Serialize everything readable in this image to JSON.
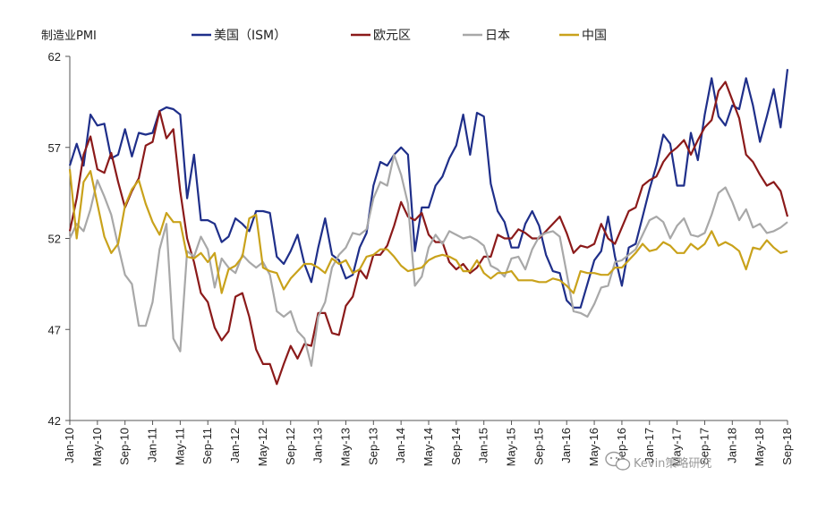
{
  "chart_data": {
    "type": "line",
    "ylabel": "制造业PMI",
    "ylim": [
      42,
      62
    ],
    "yticks": [
      42,
      47,
      52,
      57,
      62
    ],
    "xlim": [
      0,
      104
    ],
    "x_tick_labels": [
      "Jan-10",
      "May-10",
      "Sep-10",
      "Jan-11",
      "May-11",
      "Sep-11",
      "Jan-12",
      "May-12",
      "Sep-12",
      "Jan-13",
      "May-13",
      "Sep-13",
      "Jan-14",
      "May-14",
      "Sep-14",
      "Jan-15",
      "May-15",
      "Sep-15",
      "Jan-16",
      "May-16",
      "Sep-16",
      "Jan-17",
      "May-17",
      "Sep-17",
      "Jan-18",
      "May-18",
      "Sep-18"
    ],
    "legend_position": "top",
    "series": [
      {
        "name": "美国（ISM）",
        "color": "#1f2f8a",
        "x": [
          0,
          1,
          2,
          3,
          4,
          5,
          6,
          7,
          8,
          9,
          10,
          11,
          12,
          13,
          14,
          15,
          16,
          17,
          18,
          19,
          20,
          21,
          22,
          23,
          24,
          25,
          26,
          27,
          28,
          29,
          30,
          31,
          32,
          33,
          34,
          35,
          36,
          37,
          38,
          39,
          40,
          41,
          42,
          43,
          44,
          45,
          46,
          47,
          48,
          49,
          50,
          51,
          52,
          53,
          54,
          55,
          56,
          57,
          58,
          59,
          60,
          61,
          62,
          63,
          64,
          65,
          66,
          67,
          68,
          69,
          70,
          71,
          72,
          73,
          74,
          75,
          76,
          77,
          78,
          79,
          80,
          81,
          82,
          83,
          84,
          85,
          86,
          87,
          88,
          89,
          90,
          91,
          92,
          93,
          94,
          95,
          96,
          97,
          98,
          99,
          100,
          101,
          102,
          103,
          104
        ],
        "values": [
          56.0,
          57.2,
          56.0,
          58.8,
          58.2,
          58.3,
          56.4,
          56.6,
          58.0,
          56.5,
          57.8,
          57.7,
          57.8,
          59.0,
          59.2,
          59.1,
          58.8,
          54.2,
          56.6,
          53.0,
          53.0,
          52.8,
          51.8,
          52.1,
          53.1,
          52.8,
          52.4,
          53.5,
          53.5,
          53.4,
          51.0,
          50.6,
          51.3,
          52.2,
          50.6,
          49.6,
          51.5,
          53.1,
          51.1,
          50.8,
          49.8,
          50.0,
          51.5,
          52.3,
          54.9,
          56.2,
          56.0,
          56.6,
          57.0,
          56.6,
          51.3,
          53.7,
          53.7,
          54.9,
          55.4,
          56.4,
          57.1,
          58.8,
          56.6,
          58.9,
          58.7,
          55.0,
          53.5,
          52.9,
          51.5,
          51.5,
          52.8,
          53.5,
          52.7,
          51.1,
          50.2,
          50.1,
          48.6,
          48.2,
          48.2,
          49.5,
          50.8,
          51.3,
          53.2,
          51.0,
          49.4,
          51.5,
          51.7,
          53.2,
          54.7,
          56.0,
          57.7,
          57.2,
          54.9,
          54.9,
          57.8,
          56.3,
          58.8,
          60.8,
          58.7,
          58.2,
          59.3,
          59.1,
          60.8,
          59.3,
          57.3,
          58.7,
          60.2,
          58.1,
          61.3
        ]
      },
      {
        "name": "欧元区",
        "color": "#8b1a1a",
        "x": [
          0,
          1,
          2,
          3,
          4,
          5,
          6,
          7,
          8,
          9,
          10,
          11,
          12,
          13,
          14,
          15,
          16,
          17,
          18,
          19,
          20,
          21,
          22,
          23,
          24,
          25,
          26,
          27,
          28,
          29,
          30,
          31,
          32,
          33,
          34,
          35,
          36,
          37,
          38,
          39,
          40,
          41,
          42,
          43,
          44,
          45,
          46,
          47,
          48,
          49,
          50,
          51,
          52,
          53,
          54,
          55,
          56,
          57,
          58,
          59,
          60,
          61,
          62,
          63,
          64,
          65,
          66,
          67,
          68,
          69,
          70,
          71,
          72,
          73,
          74,
          75,
          76,
          77,
          78,
          79,
          80,
          81,
          82,
          83,
          84,
          85,
          86,
          87,
          88,
          89,
          90,
          91,
          92,
          93,
          94,
          95,
          96,
          97,
          98,
          99,
          100,
          101,
          102,
          103,
          104
        ],
        "values": [
          52.4,
          54.2,
          56.6,
          57.6,
          55.8,
          55.6,
          56.7,
          55.1,
          53.7,
          54.6,
          55.3,
          57.1,
          57.3,
          59.0,
          57.5,
          58.0,
          54.6,
          52.0,
          50.7,
          49.0,
          48.5,
          47.1,
          46.4,
          46.9,
          48.8,
          49.0,
          47.7,
          45.9,
          45.1,
          45.1,
          44.0,
          45.1,
          46.1,
          45.4,
          46.2,
          46.1,
          47.9,
          47.9,
          46.8,
          46.7,
          48.3,
          48.8,
          50.3,
          49.8,
          51.1,
          51.1,
          51.6,
          52.7,
          54.0,
          53.2,
          53.0,
          53.4,
          52.2,
          51.8,
          51.8,
          50.7,
          50.3,
          50.6,
          50.1,
          50.4,
          51.0,
          51.0,
          52.2,
          52.0,
          52.0,
          52.5,
          52.3,
          52.0,
          52.0,
          52.4,
          52.8,
          53.2,
          52.3,
          51.2,
          51.6,
          51.5,
          51.7,
          52.8,
          52.0,
          51.7,
          52.6,
          53.5,
          53.7,
          54.9,
          55.2,
          55.4,
          56.2,
          56.7,
          57.0,
          57.4,
          56.6,
          57.4,
          58.1,
          58.5,
          60.1,
          60.6,
          59.6,
          58.6,
          56.6,
          56.2,
          55.5,
          54.9,
          55.1,
          54.6,
          53.2
        ]
      },
      {
        "name": "日本",
        "color": "#a8a8a8",
        "x": [
          0,
          1,
          2,
          3,
          4,
          5,
          6,
          7,
          8,
          9,
          10,
          11,
          12,
          13,
          14,
          15,
          16,
          17,
          18,
          19,
          20,
          21,
          22,
          23,
          24,
          25,
          26,
          27,
          28,
          29,
          30,
          31,
          32,
          33,
          34,
          35,
          36,
          37,
          38,
          39,
          40,
          41,
          42,
          43,
          44,
          45,
          46,
          47,
          48,
          49,
          50,
          51,
          52,
          53,
          54,
          55,
          56,
          57,
          58,
          59,
          60,
          61,
          62,
          63,
          64,
          65,
          66,
          67,
          68,
          69,
          70,
          71,
          72,
          73,
          74,
          75,
          76,
          77,
          78,
          79,
          80,
          81,
          82,
          83,
          84,
          85,
          86,
          87,
          88,
          89,
          90,
          91,
          92,
          93,
          94,
          95,
          96,
          97,
          98,
          99,
          100,
          101,
          102,
          103,
          104
        ],
        "values": [
          52.0,
          52.8,
          52.4,
          53.6,
          55.2,
          54.3,
          53.3,
          51.6,
          50.0,
          49.5,
          47.2,
          47.2,
          48.5,
          51.4,
          52.8,
          46.5,
          45.8,
          51.3,
          51.0,
          52.1,
          51.4,
          49.3,
          50.9,
          50.4,
          50.1,
          51.1,
          50.7,
          50.4,
          50.7,
          50.0,
          48.0,
          47.7,
          48.0,
          46.9,
          46.5,
          45.0,
          47.7,
          48.5,
          50.4,
          51.1,
          51.5,
          52.3,
          52.2,
          52.5,
          54.2,
          55.1,
          54.9,
          56.6,
          55.5,
          53.9,
          49.4,
          49.9,
          51.5,
          52.2,
          51.7,
          52.4,
          52.2,
          52.0,
          52.1,
          51.9,
          51.6,
          50.5,
          50.3,
          49.9,
          50.9,
          51.0,
          50.3,
          51.4,
          52.1,
          52.3,
          52.4,
          52.1,
          50.1,
          48.0,
          47.9,
          47.7,
          48.4,
          49.3,
          49.4,
          50.7,
          50.8,
          51.1,
          51.4,
          52.2,
          53.0,
          53.2,
          52.9,
          52.0,
          52.7,
          53.1,
          52.2,
          52.1,
          52.3,
          53.3,
          54.5,
          54.8,
          54.0,
          53.0,
          53.6,
          52.6,
          52.8,
          52.3,
          52.4,
          52.6,
          52.9
        ]
      },
      {
        "name": "中国",
        "color": "#c9a21b",
        "x": [
          0,
          1,
          2,
          3,
          4,
          5,
          6,
          7,
          8,
          9,
          10,
          11,
          12,
          13,
          14,
          15,
          16,
          17,
          18,
          19,
          20,
          21,
          22,
          23,
          24,
          25,
          26,
          27,
          28,
          29,
          30,
          31,
          32,
          33,
          34,
          35,
          36,
          37,
          38,
          39,
          40,
          41,
          42,
          43,
          44,
          45,
          46,
          47,
          48,
          49,
          50,
          51,
          52,
          53,
          54,
          55,
          56,
          57,
          58,
          59,
          60,
          61,
          62,
          63,
          64,
          65,
          66,
          67,
          68,
          69,
          70,
          71,
          72,
          73,
          74,
          75,
          76,
          77,
          78,
          79,
          80,
          81,
          82,
          83,
          84,
          85,
          86,
          87,
          88,
          89,
          90,
          91,
          92,
          93,
          94,
          95,
          96,
          97,
          98,
          99,
          100,
          101,
          102,
          103,
          104
        ],
        "values": [
          55.8,
          52.0,
          55.1,
          55.7,
          53.9,
          52.1,
          51.2,
          51.7,
          53.8,
          54.7,
          55.2,
          53.9,
          52.9,
          52.2,
          53.4,
          52.9,
          52.9,
          51.0,
          50.9,
          51.2,
          50.7,
          51.2,
          49.0,
          50.3,
          50.5,
          51.0,
          53.1,
          53.3,
          50.4,
          50.2,
          50.1,
          49.2,
          49.8,
          50.2,
          50.6,
          50.6,
          50.4,
          50.1,
          50.9,
          50.6,
          50.8,
          50.1,
          50.3,
          51.0,
          51.1,
          51.4,
          51.4,
          51.0,
          50.5,
          50.2,
          50.3,
          50.4,
          50.8,
          51.0,
          51.1,
          51.0,
          50.8,
          50.2,
          50.2,
          50.8,
          50.1,
          49.8,
          50.1,
          50.1,
          50.2,
          49.7,
          49.7,
          49.7,
          49.6,
          49.6,
          49.8,
          49.7,
          49.4,
          49.0,
          50.2,
          50.1,
          50.1,
          50.0,
          50.0,
          50.4,
          50.4,
          50.8,
          51.2,
          51.7,
          51.3,
          51.4,
          51.8,
          51.6,
          51.2,
          51.2,
          51.7,
          51.4,
          51.7,
          52.4,
          51.6,
          51.8,
          51.6,
          51.3,
          50.3,
          51.5,
          51.4,
          51.9,
          51.5,
          51.2,
          51.3
        ]
      }
    ]
  },
  "watermark": {
    "icon": "wechat-icon",
    "text": "Kevin策略研究"
  }
}
